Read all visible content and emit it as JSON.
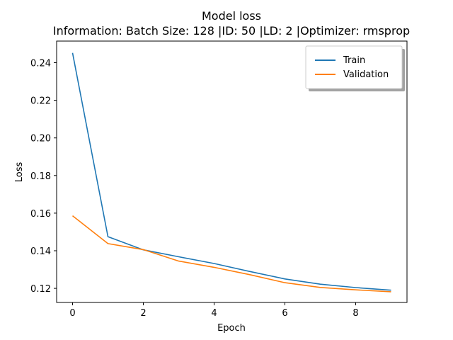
{
  "chart_data": {
    "type": "line",
    "title": "Model loss",
    "subtitle": "Information: Batch Size: 128 |ID: 50 |LD: 2 |Optimizer: rmsprop",
    "xlabel": "Epoch",
    "ylabel": "Loss",
    "x": [
      0,
      1,
      2,
      3,
      4,
      5,
      6,
      7,
      8,
      9
    ],
    "xlim": [
      -0.45,
      9.45
    ],
    "ylim": [
      0.1125,
      0.2515
    ],
    "xticks": [
      0,
      2,
      4,
      6,
      8
    ],
    "yticks": [
      0.12,
      0.14,
      0.16,
      0.18,
      0.2,
      0.22,
      0.24
    ],
    "ytick_labels": [
      "0.12",
      "0.14",
      "0.16",
      "0.18",
      "0.20",
      "0.22",
      "0.24"
    ],
    "grid": false,
    "legend_position": "top-right",
    "series": [
      {
        "name": "Train",
        "color": "#1f77b4",
        "values": [
          0.2452,
          0.1475,
          0.1405,
          0.1368,
          0.1332,
          0.129,
          0.125,
          0.1222,
          0.1204,
          0.119
        ]
      },
      {
        "name": "Validation",
        "color": "#ff7f0e",
        "values": [
          0.1586,
          0.1438,
          0.1406,
          0.1345,
          0.1312,
          0.1273,
          0.123,
          0.1205,
          0.1192,
          0.1182
        ]
      }
    ]
  }
}
